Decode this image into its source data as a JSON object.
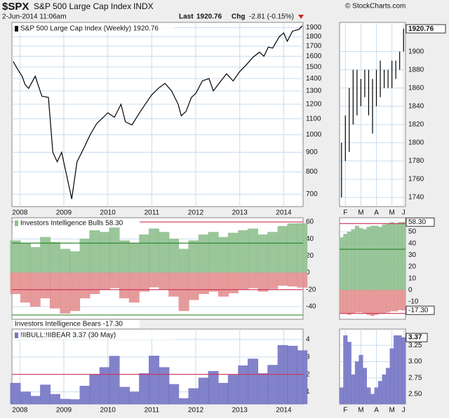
{
  "header": {
    "symbol": "$SPX",
    "name": "S&P 500 Large Cap Index",
    "exchange": "INDX",
    "date": "2-Jun-2014 11:06am",
    "last_label": "Last",
    "last": "1920.76",
    "chg_label": "Chg",
    "chg": "-2.81 (-0.15%)",
    "credit": "© StockCharts.com"
  },
  "chart_data": [
    {
      "type": "line",
      "title": "S&P 500 Large Cap Index (Weekly) 1920.76",
      "log": true,
      "grid": true,
      "color": "#000000",
      "x": [
        2007.85,
        2007.95,
        2008.05,
        2008.12,
        2008.2,
        2008.35,
        2008.5,
        2008.65,
        2008.75,
        2008.85,
        2008.95,
        2009.1,
        2009.18,
        2009.3,
        2009.45,
        2009.6,
        2009.75,
        2009.9,
        2010.0,
        2010.15,
        2010.3,
        2010.4,
        2010.55,
        2010.7,
        2010.85,
        2011.0,
        2011.15,
        2011.3,
        2011.45,
        2011.6,
        2011.67,
        2011.78,
        2011.9,
        2012.0,
        2012.15,
        2012.3,
        2012.4,
        2012.55,
        2012.7,
        2012.85,
        2013.0,
        2013.15,
        2013.3,
        2013.45,
        2013.55,
        2013.65,
        2013.75,
        2013.9,
        2014.0,
        2014.08,
        2014.2,
        2014.35,
        2014.42
      ],
      "values": [
        1550,
        1480,
        1420,
        1350,
        1320,
        1420,
        1260,
        1250,
        900,
        850,
        900,
        750,
        680,
        850,
        920,
        1000,
        1070,
        1110,
        1140,
        1110,
        1200,
        1080,
        1060,
        1130,
        1200,
        1270,
        1320,
        1360,
        1300,
        1200,
        1120,
        1150,
        1250,
        1280,
        1380,
        1400,
        1300,
        1370,
        1440,
        1380,
        1460,
        1520,
        1590,
        1640,
        1600,
        1690,
        1680,
        1800,
        1840,
        1750,
        1860,
        1880,
        1920.76
      ],
      "xlim": [
        2007.82,
        2014.44
      ],
      "xticks": [
        2008,
        2009,
        2010,
        2011,
        2012,
        2013,
        2014
      ],
      "ylim": [
        650,
        1960
      ],
      "yticks": [
        700,
        800,
        900,
        1000,
        1100,
        1200,
        1300,
        1400,
        1500,
        1600,
        1700,
        1800,
        1900
      ]
    },
    {
      "type": "bar",
      "grid": true,
      "x": [
        2007.9,
        2008.13,
        2008.35,
        2008.58,
        2008.8,
        2009.03,
        2009.25,
        2009.48,
        2009.7,
        2009.93,
        2010.15,
        2010.38,
        2010.6,
        2010.83,
        2011.05,
        2011.28,
        2011.5,
        2011.73,
        2011.95,
        2012.18,
        2012.4,
        2012.63,
        2012.85,
        2013.08,
        2013.3,
        2013.53,
        2013.75,
        2013.98,
        2014.2,
        2014.42
      ],
      "series": [
        {
          "name": "Investors Intelligence Bulls 58.30",
          "color": "#8fc08f",
          "values": [
            38,
            35,
            30,
            42,
            36,
            28,
            25,
            40,
            50,
            48,
            55,
            38,
            35,
            45,
            52,
            48,
            40,
            28,
            38,
            45,
            48,
            42,
            47,
            50,
            52,
            45,
            48,
            55,
            58,
            58.3
          ]
        },
        {
          "name": "Investors Intelligence Bears -17.30",
          "color": "#e39090",
          "values": [
            -25,
            -35,
            -40,
            -30,
            -42,
            -48,
            -45,
            -30,
            -25,
            -20,
            -18,
            -30,
            -35,
            -22,
            -17,
            -20,
            -28,
            -45,
            -32,
            -25,
            -22,
            -28,
            -24,
            -20,
            -18,
            -22,
            -19,
            -15,
            -16,
            -17.3
          ]
        }
      ],
      "xlim": [
        2007.82,
        2014.44
      ],
      "ylim": [
        -55,
        65
      ],
      "yticks": [
        -40,
        -20,
        0,
        20,
        40,
        60
      ],
      "reference_lines": [
        {
          "value": 60,
          "color": "#cc3355"
        },
        {
          "value": 35,
          "color": "#338833"
        },
        {
          "value": -20,
          "color": "#cc3355"
        },
        {
          "value": -50,
          "color": "#338833"
        }
      ]
    },
    {
      "type": "bar",
      "title": "!IIBULL:!IIBEAR 3.37 (30 May)",
      "grid": true,
      "color": "#7474c4",
      "x": [
        2007.9,
        2008.13,
        2008.35,
        2008.58,
        2008.8,
        2009.03,
        2009.25,
        2009.48,
        2009.7,
        2009.93,
        2010.15,
        2010.38,
        2010.6,
        2010.83,
        2011.05,
        2011.28,
        2011.5,
        2011.73,
        2011.95,
        2012.18,
        2012.4,
        2012.63,
        2012.85,
        2013.08,
        2013.3,
        2013.53,
        2013.75,
        2013.98,
        2014.2,
        2014.42
      ],
      "values": [
        1.5,
        1.0,
        0.75,
        1.4,
        0.86,
        0.58,
        0.56,
        1.33,
        2.0,
        2.4,
        3.05,
        1.27,
        1.0,
        2.05,
        3.06,
        2.4,
        1.43,
        0.62,
        1.19,
        1.8,
        2.18,
        1.5,
        1.96,
        2.5,
        2.89,
        2.05,
        2.53,
        3.67,
        3.63,
        3.37
      ],
      "xlim": [
        2007.82,
        2014.44
      ],
      "xticks": [
        2008,
        2009,
        2010,
        2011,
        2012,
        2013,
        2014
      ],
      "ylim": [
        0.3,
        4.6
      ],
      "yticks": [
        1,
        2,
        3,
        4
      ],
      "reference_lines": [
        {
          "value": 2,
          "color": "#cc3355"
        }
      ]
    },
    {
      "type": "hlbar",
      "grid": true,
      "color": "#000000",
      "last_label": "1920.76",
      "categories": [
        null,
        "F",
        null,
        null,
        null,
        "M",
        null,
        null,
        null,
        "A",
        null,
        null,
        null,
        "M",
        null,
        null,
        "J"
      ],
      "low": [
        1740,
        1780,
        1790,
        1820,
        1830,
        1840,
        1850,
        1830,
        1810,
        1840,
        1850,
        1860,
        1860,
        1860,
        1870,
        1880,
        1900
      ],
      "high": [
        1800,
        1830,
        1860,
        1880,
        1880,
        1870,
        1880,
        1880,
        1870,
        1880,
        1890,
        1880,
        1880,
        1890,
        1890,
        1900,
        1925
      ],
      "ylim": [
        1730,
        1932
      ],
      "yticks": [
        1740,
        1760,
        1780,
        1800,
        1820,
        1840,
        1860,
        1880,
        1900
      ]
    },
    {
      "type": "bar",
      "grid": true,
      "series": [
        {
          "color": "#8fc08f",
          "last_label": "58.30",
          "values": [
            45,
            48,
            50,
            52,
            55,
            53,
            52,
            54,
            55,
            55,
            54,
            56,
            57,
            58,
            57,
            58,
            58.3
          ]
        },
        {
          "color": "#e39090",
          "last_label": "-17.30",
          "values": [
            -20,
            -20,
            -21,
            -20,
            -19,
            -19,
            -20,
            -21,
            -22,
            -21,
            -20,
            -20,
            -19,
            -18,
            -18,
            -17,
            -17.3
          ]
        }
      ],
      "ylim": [
        -25,
        62
      ],
      "yticks": [
        -10,
        0,
        10,
        20,
        30,
        40,
        50
      ],
      "reference_lines": [
        {
          "value": 57,
          "color": "#cc3355"
        },
        {
          "value": 35,
          "color": "#338833"
        },
        {
          "value": -20,
          "color": "#cc3355"
        }
      ]
    },
    {
      "type": "bar",
      "grid": true,
      "color": "#7474c4",
      "last_label": "3.37",
      "categories": [
        null,
        "F",
        null,
        null,
        null,
        "M",
        null,
        null,
        null,
        "A",
        null,
        null,
        null,
        "M",
        null,
        null,
        "J"
      ],
      "values": [
        2.6,
        3.4,
        3.3,
        2.8,
        3.0,
        3.1,
        2.9,
        2.6,
        2.5,
        2.6,
        2.7,
        2.8,
        2.9,
        3.2,
        3.4,
        3.4,
        3.37
      ],
      "ylim": [
        2.35,
        3.5
      ],
      "yticks": [
        {
          "value": 2.5,
          "label": "2.50"
        },
        {
          "value": 2.75,
          "label": "2.75"
        },
        {
          "value": 3,
          "label": "3.00"
        },
        {
          "value": 3.25,
          "label": "3.25"
        }
      ]
    }
  ]
}
